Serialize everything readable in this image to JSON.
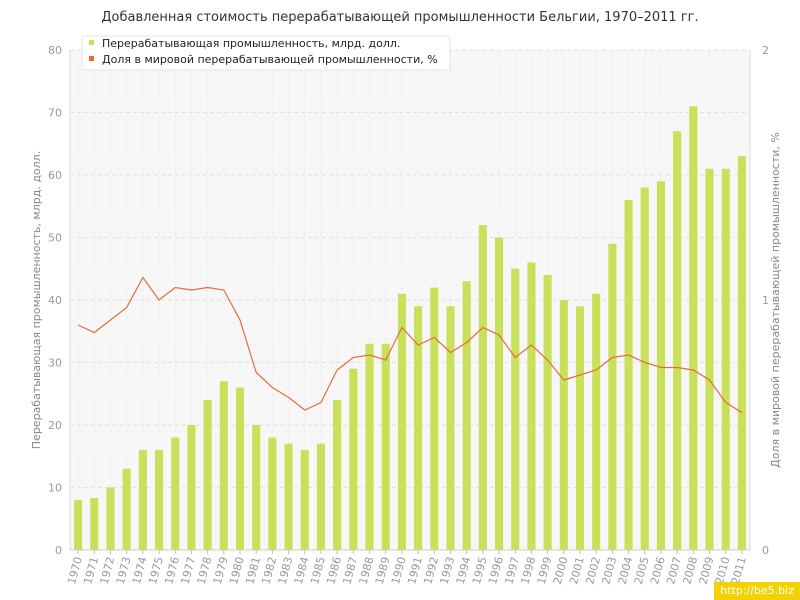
{
  "chart_data": {
    "type": "bar",
    "title": "Добавленная стоимость перерабатывающей промышленности Бельгии, 1970–2011 гг.",
    "ylabel": "Перерабатывающая промышленность, млрд. долл.",
    "y2label": "Доля в мировой перерабатывающей промышленности, %",
    "ylim": [
      0,
      80
    ],
    "y2lim": [
      0,
      2
    ],
    "yticks": [
      0,
      10,
      20,
      30,
      40,
      50,
      60,
      70,
      80
    ],
    "y2ticks": [
      0,
      1,
      2
    ],
    "grid": true,
    "legend_position": "top-left",
    "categories": [
      "1970",
      "1971",
      "1972",
      "1973",
      "1974",
      "1975",
      "1976",
      "1977",
      "1978",
      "1979",
      "1980",
      "1981",
      "1982",
      "1983",
      "1984",
      "1985",
      "1986",
      "1987",
      "1988",
      "1989",
      "1990",
      "1991",
      "1992",
      "1993",
      "1994",
      "1995",
      "1996",
      "1997",
      "1998",
      "1999",
      "2000",
      "2001",
      "2002",
      "2003",
      "2004",
      "2005",
      "2006",
      "2007",
      "2008",
      "2009",
      "2010",
      "2011"
    ],
    "series": [
      {
        "name": "Перерабатывающая промышленность, млрд. долл.",
        "type": "bar",
        "axis": "left",
        "color": "#c8e05a",
        "values": [
          8,
          8.3,
          10,
          13,
          16,
          16,
          18,
          20,
          24,
          27,
          26,
          20,
          18,
          17,
          16,
          17,
          24,
          29,
          33,
          33,
          41,
          39,
          42,
          39,
          43,
          52,
          50,
          45,
          46,
          44,
          40,
          39,
          41,
          49,
          56,
          58,
          59,
          67,
          71,
          61,
          61,
          63
        ]
      },
      {
        "name": "Доля в мировой перерабатывающей промышленности, %",
        "type": "line",
        "axis": "right",
        "color": "#e0703a",
        "values": [
          0.9,
          0.87,
          0.92,
          0.97,
          1.09,
          1.0,
          1.05,
          1.04,
          1.05,
          1.04,
          0.92,
          0.71,
          0.65,
          0.61,
          0.56,
          0.59,
          0.72,
          0.77,
          0.78,
          0.76,
          0.89,
          0.82,
          0.85,
          0.79,
          0.83,
          0.89,
          0.86,
          0.77,
          0.82,
          0.76,
          0.68,
          0.7,
          0.72,
          0.77,
          0.78,
          0.75,
          0.73,
          0.73,
          0.72,
          0.68,
          0.59,
          0.55
        ]
      }
    ]
  },
  "watermark": "http://be5.biz"
}
